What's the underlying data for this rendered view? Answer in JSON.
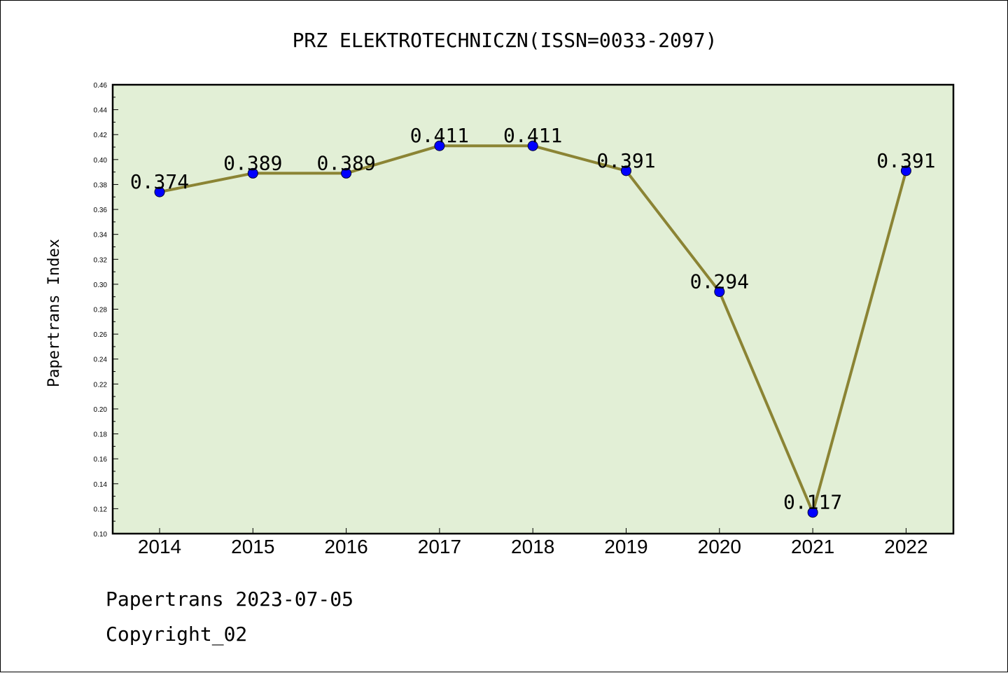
{
  "chart_data": {
    "type": "line",
    "title": "PRZ ELEKTROTECHNICZN(ISSN=0033-2097)",
    "xlabel": "",
    "ylabel": "Papertrans Index",
    "categories": [
      "2014",
      "2015",
      "2016",
      "2017",
      "2018",
      "2019",
      "2020",
      "2021",
      "2022"
    ],
    "series": [
      {
        "values": [
          0.374,
          0.389,
          0.389,
          0.411,
          0.411,
          0.391,
          0.294,
          0.117,
          0.391
        ]
      }
    ],
    "data_labels": [
      "0.374",
      "0.389",
      "0.389",
      "0.411",
      "0.411",
      "0.391",
      "0.294",
      "0.117",
      "0.391"
    ],
    "ylim": [
      0.1,
      0.46
    ],
    "yticks": [
      "0.10",
      "0.12",
      "0.14",
      "0.16",
      "0.18",
      "0.20",
      "0.22",
      "0.24",
      "0.26",
      "0.28",
      "0.30",
      "0.32",
      "0.34",
      "0.36",
      "0.38",
      "0.40",
      "0.42",
      "0.44",
      "0.46"
    ],
    "grid": false,
    "colors": {
      "plot_background": "#e2efd6",
      "line": "#8b8434",
      "marker": "#0000ff"
    }
  },
  "footer": {
    "source": "Papertrans 2023-07-05",
    "copyright": "Copyright_02"
  }
}
